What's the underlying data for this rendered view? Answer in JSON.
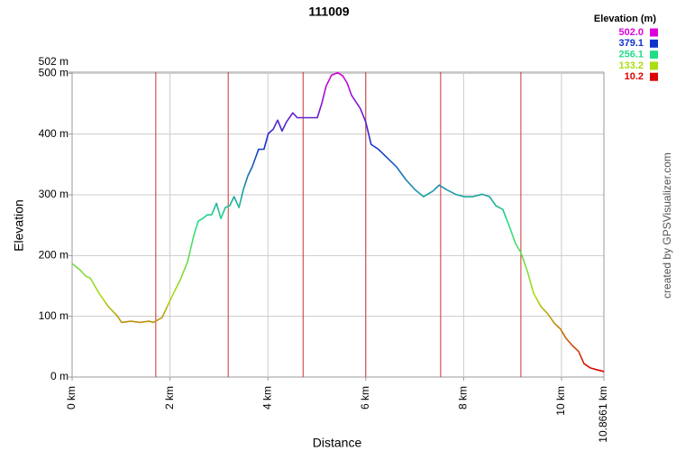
{
  "chart_data": {
    "type": "line",
    "title": "111009",
    "x_label": "Distance",
    "y_label": "Elevation",
    "credit": "created by GPSVisualizer.com",
    "x": [
      0,
      0.18,
      0.28,
      0.37,
      0.55,
      0.74,
      0.92,
      1.01,
      1.2,
      1.38,
      1.57,
      1.66,
      1.84,
      2.03,
      2.21,
      2.36,
      2.49,
      2.58,
      2.67,
      2.76,
      2.85,
      2.95,
      3.04,
      3.13,
      3.22,
      3.31,
      3.41,
      3.5,
      3.59,
      3.68,
      3.81,
      3.92,
      4.01,
      4.11,
      4.2,
      4.29,
      4.38,
      4.51,
      4.6,
      4.79,
      5.01,
      5.1,
      5.19,
      5.3,
      5.43,
      5.53,
      5.62,
      5.71,
      5.89,
      6.0,
      6.11,
      6.26,
      6.45,
      6.63,
      6.81,
      7.0,
      7.18,
      7.37,
      7.5,
      7.64,
      7.83,
      8.01,
      8.19,
      8.38,
      8.53,
      8.66,
      8.8,
      8.93,
      9.06,
      9.17,
      9.3,
      9.43,
      9.58,
      9.72,
      9.85,
      9.98,
      10.09,
      10.22,
      10.35,
      10.46,
      10.59,
      10.72,
      10.87
    ],
    "series": [
      {
        "name": "Elevation",
        "values": [
          187,
          175,
          166,
          163,
          138,
          116,
          101,
          90,
          92,
          90,
          92,
          90,
          98,
          131,
          160,
          190,
          234,
          257,
          261,
          267,
          267,
          286,
          261,
          279,
          282,
          297,
          279,
          309,
          331,
          346,
          375,
          375,
          401,
          408,
          423,
          405,
          420,
          435,
          427,
          427,
          427,
          450,
          479,
          497,
          501,
          496,
          484,
          464,
          442,
          420,
          383,
          375,
          360,
          346,
          326,
          309,
          297,
          306,
          316,
          309,
          301,
          297,
          297,
          301,
          297,
          282,
          276,
          249,
          220,
          205,
          175,
          138,
          116,
          104,
          89,
          79,
          64,
          52,
          42,
          22,
          15,
          12,
          9
        ]
      }
    ],
    "markers": [
      1.71,
      3.19,
      4.72,
      6.0,
      7.53,
      9.17
    ],
    "marker_color": "#cc3333",
    "xlim": [
      0,
      10.8661
    ],
    "ylim": [
      0,
      502
    ],
    "xticks": [
      {
        "value": 0,
        "label": "0 km"
      },
      {
        "value": 2,
        "label": "2 km"
      },
      {
        "value": 4,
        "label": "4 km"
      },
      {
        "value": 6,
        "label": "6 km"
      },
      {
        "value": 8,
        "label": "8 km"
      },
      {
        "value": 10,
        "label": "10 km"
      },
      {
        "value": 10.8661,
        "label": "10.8661 km"
      }
    ],
    "yticks": [
      {
        "value": 0,
        "label": "0 m"
      },
      {
        "value": 100,
        "label": "100 m"
      },
      {
        "value": 200,
        "label": "200 m"
      },
      {
        "value": 300,
        "label": "300 m"
      },
      {
        "value": 400,
        "label": "400 m"
      },
      {
        "value": 500,
        "label": "500 m"
      },
      {
        "value": 502,
        "label": "502 m"
      }
    ],
    "grid": true,
    "legend": {
      "title": "Elevation (m)",
      "items": [
        {
          "value": 502.0,
          "label": "502.0",
          "color": "#dd00dd"
        },
        {
          "value": 379.1,
          "label": "379.1",
          "color": "#1133cc"
        },
        {
          "value": 256.1,
          "label": "256.1",
          "color": "#22dd88"
        },
        {
          "value": 133.2,
          "label": "133.2",
          "color": "#aadd11"
        },
        {
          "value": 10.2,
          "label": "10.2",
          "color": "#dd0000"
        }
      ]
    }
  }
}
